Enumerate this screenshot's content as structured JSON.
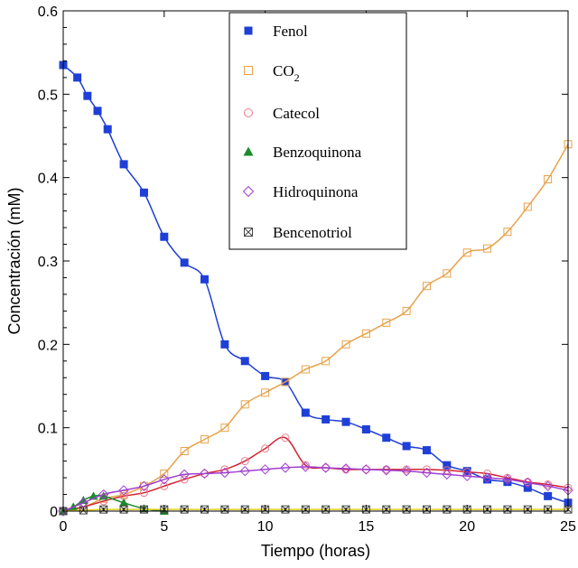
{
  "chart_data": {
    "type": "line",
    "title": "",
    "xlabel": "Tiempo (horas)",
    "ylabel": "Concentración (mM)",
    "xlim": [
      0,
      25
    ],
    "ylim": [
      0,
      0.6
    ],
    "xticks": [
      "0",
      "5",
      "10",
      "15",
      "20",
      "25"
    ],
    "yticks": [
      "0",
      "0.1",
      "0.2",
      "0.3",
      "0.4",
      "0.5",
      "0.6"
    ],
    "legend_position": "top-center",
    "grid": false,
    "series": [
      {
        "name": "Fenol",
        "label_main": "Fenol",
        "label_sub": "",
        "marker": "filled-square",
        "color": "#1f3fd6",
        "line_color": "#1f3fd6",
        "x": [
          0,
          0.7,
          1.2,
          1.7,
          2.2,
          3,
          4,
          5,
          6,
          7,
          8,
          9,
          10,
          11,
          12,
          13,
          14,
          15,
          16,
          17,
          18,
          19,
          20,
          21,
          22,
          23,
          24,
          25
        ],
        "y": [
          0.535,
          0.52,
          0.498,
          0.48,
          0.458,
          0.416,
          0.382,
          0.329,
          0.298,
          0.278,
          0.2,
          0.18,
          0.162,
          0.155,
          0.118,
          0.11,
          0.107,
          0.098,
          0.088,
          0.078,
          0.073,
          0.055,
          0.048,
          0.038,
          0.035,
          0.028,
          0.018,
          0.01
        ]
      },
      {
        "name": "CO2",
        "label_main": "CO",
        "label_sub": "2",
        "marker": "open-square",
        "color": "#e8a24a",
        "line_color": "#e8a24a",
        "x": [
          0,
          1,
          2,
          3,
          4,
          5,
          6,
          7,
          8,
          9,
          10,
          11,
          12,
          13,
          14,
          15,
          16,
          17,
          18,
          19,
          20,
          21,
          22,
          23,
          24,
          25
        ],
        "y": [
          0,
          0.005,
          0.015,
          0.02,
          0.03,
          0.045,
          0.072,
          0.086,
          0.1,
          0.128,
          0.142,
          0.155,
          0.17,
          0.18,
          0.2,
          0.213,
          0.226,
          0.24,
          0.27,
          0.285,
          0.31,
          0.315,
          0.335,
          0.365,
          0.398,
          0.44
        ]
      },
      {
        "name": "Catecol",
        "label_main": "Catecol",
        "label_sub": "",
        "marker": "open-circle",
        "color": "#e87a8a",
        "line_color": "#d42030",
        "x": [
          0,
          1,
          2,
          3,
          4,
          5,
          6,
          7,
          8,
          9,
          10,
          11,
          12,
          13,
          14,
          15,
          16,
          17,
          18,
          19,
          20,
          21,
          22,
          23,
          24,
          25
        ],
        "y": [
          0,
          0.005,
          0.012,
          0.018,
          0.022,
          0.03,
          0.038,
          0.045,
          0.05,
          0.06,
          0.075,
          0.088,
          0.055,
          0.052,
          0.05,
          0.05,
          0.05,
          0.05,
          0.05,
          0.049,
          0.047,
          0.045,
          0.04,
          0.035,
          0.032,
          0.028
        ]
      },
      {
        "name": "Benzoquinona",
        "label_main": "Benzoquinona",
        "label_sub": "",
        "marker": "filled-triangle",
        "color": "#1a8a2a",
        "line_color": "#1a8a2a",
        "x": [
          0,
          0.5,
          1,
          1.5,
          2,
          3,
          4,
          5
        ],
        "y": [
          0,
          0.005,
          0.013,
          0.018,
          0.018,
          0.01,
          0.003,
          0
        ]
      },
      {
        "name": "Hidroquinona",
        "label_main": "Hidroquinona",
        "label_sub": "",
        "marker": "open-diamond",
        "color": "#a040d0",
        "line_color": "#a040d0",
        "x": [
          0,
          1,
          2,
          3,
          4,
          5,
          6,
          7,
          8,
          9,
          10,
          11,
          12,
          13,
          14,
          15,
          16,
          17,
          18,
          19,
          20,
          21,
          22,
          23,
          24,
          25
        ],
        "y": [
          0,
          0.01,
          0.02,
          0.025,
          0.03,
          0.038,
          0.044,
          0.045,
          0.046,
          0.048,
          0.05,
          0.052,
          0.053,
          0.052,
          0.051,
          0.05,
          0.049,
          0.048,
          0.046,
          0.044,
          0.042,
          0.04,
          0.038,
          0.034,
          0.03,
          0.025
        ]
      },
      {
        "name": "Bencenotriol",
        "label_main": "Bencenotriol",
        "label_sub": "",
        "marker": "crossed-square",
        "color": "#444444",
        "line_color": "#e0d020",
        "x": [
          0,
          1,
          2,
          3,
          4,
          5,
          6,
          7,
          8,
          9,
          10,
          11,
          12,
          13,
          14,
          15,
          16,
          17,
          18,
          19,
          20,
          21,
          22,
          23,
          24,
          25
        ],
        "y": [
          0,
          0.001,
          0.002,
          0.002,
          0.002,
          0.002,
          0.002,
          0.002,
          0.002,
          0.002,
          0.002,
          0.002,
          0.002,
          0.002,
          0.002,
          0.002,
          0.002,
          0.002,
          0.002,
          0.002,
          0.002,
          0.002,
          0.002,
          0.002,
          0.002,
          0.002
        ]
      }
    ]
  }
}
